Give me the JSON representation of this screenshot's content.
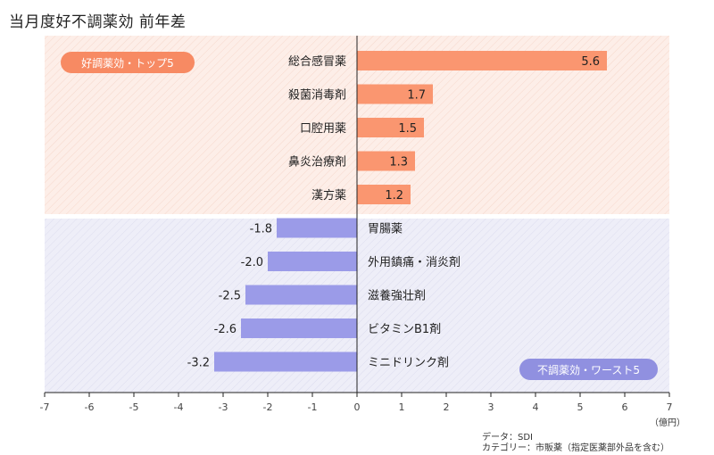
{
  "title": "当月度好不調薬効 前年差",
  "unit_label": "（億円）",
  "source_note": "データ：SDI",
  "category_note": "カテゴリー：市販薬（指定医薬部外品を含む）",
  "colors": {
    "positive_bar": "#fa9670",
    "negative_bar": "#9b9be8",
    "positive_bg": "#fdeee8",
    "negative_bg": "#eeeef8",
    "badge_positive": "#f78a63",
    "badge_negative": "#9090e0"
  },
  "chart_data": {
    "type": "bar",
    "orientation": "horizontal",
    "title": "当月度好不調薬効 前年差",
    "xlim": [
      -7,
      7
    ],
    "x_ticks": [
      -7,
      -6,
      -5,
      -4,
      -3,
      -2,
      -1,
      0,
      1,
      2,
      3,
      4,
      5,
      6,
      7
    ],
    "groups": [
      {
        "name": "好調薬効・トップ5",
        "categories": [
          "総合感冒薬",
          "殺菌消毒剤",
          "口腔用薬",
          "鼻炎治療剤",
          "漢方薬"
        ],
        "values": [
          5.6,
          1.7,
          1.5,
          1.3,
          1.2
        ],
        "labels": [
          "5.6",
          "1.7",
          "1.5",
          "1.3",
          "1.2"
        ]
      },
      {
        "name": "不調薬効・ワースト5",
        "categories": [
          "胃腸薬",
          "外用鎮痛・消炎剤",
          "滋養強壮剤",
          "ビタミンB1剤",
          "ミニドリンク剤"
        ],
        "values": [
          -1.8,
          -2.0,
          -2.5,
          -2.6,
          -3.2
        ],
        "labels": [
          "-1.8",
          "-2.0",
          "-2.5",
          "-2.6",
          "-3.2"
        ]
      }
    ]
  }
}
